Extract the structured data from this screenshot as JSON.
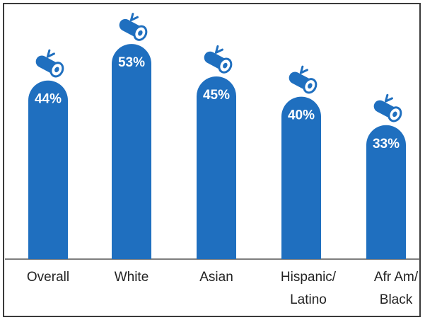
{
  "chart_data": {
    "type": "bar",
    "categories": [
      [
        "Overall"
      ],
      [
        "White"
      ],
      [
        "Asian"
      ],
      [
        "Hispanic/",
        "Latino"
      ],
      [
        "Afr Am/",
        "Black"
      ]
    ],
    "values": [
      44,
      53,
      45,
      40,
      33
    ],
    "value_labels": [
      "44%",
      "53%",
      "45%",
      "40%",
      "33%"
    ],
    "ylim": [
      0,
      60
    ],
    "grid": false,
    "bar_color": "#1f6fbf",
    "bar_icon": "diploma-scroll-icon"
  }
}
